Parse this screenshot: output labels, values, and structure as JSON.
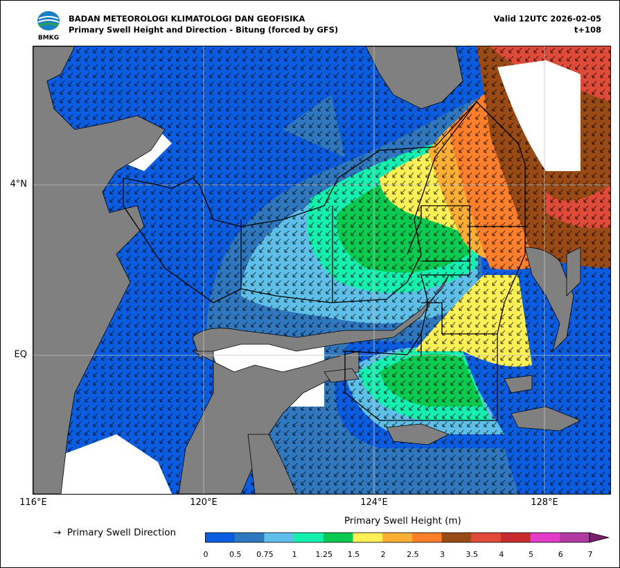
{
  "header": {
    "agency": "BADAN METEOROLOGI KLIMATOLOGI DAN GEOFISIKA",
    "product": "Primary Swell Height and Direction - Bitung (forced by GFS)",
    "valid": "Valid 12UTC 2026-02-05",
    "lead": "t+108",
    "logo_text": "BMKG"
  },
  "axes": {
    "lon_labels": [
      "116°E",
      "120°E",
      "124°E",
      "128°E"
    ],
    "lat_labels": [
      "4°N",
      "EQ"
    ]
  },
  "legend": {
    "arrow_symbol": "→",
    "arrow_label": "Primary Swell Direction"
  },
  "colorbar": {
    "title": "Primary Swell Height (m)",
    "ticks": [
      "0",
      "0.5",
      "0.75",
      "1",
      "1.25",
      "1.5",
      "2",
      "2.5",
      "3",
      "3.5",
      "4",
      "5",
      "6",
      "7"
    ],
    "colors": [
      "#0a5de0",
      "#2f78c0",
      "#5ec0e8",
      "#14f0b0",
      "#0acb50",
      "#fff055",
      "#ffae35",
      "#ff7f2a",
      "#9a4a14",
      "#e04a38",
      "#c82b2b",
      "#e03cc8",
      "#b03aa0",
      "#7a1f6e"
    ]
  },
  "colors": {
    "land": "#808080",
    "grid": "#c0c0c0",
    "arrows": "#000000",
    "no_data": "#ffffff"
  }
}
